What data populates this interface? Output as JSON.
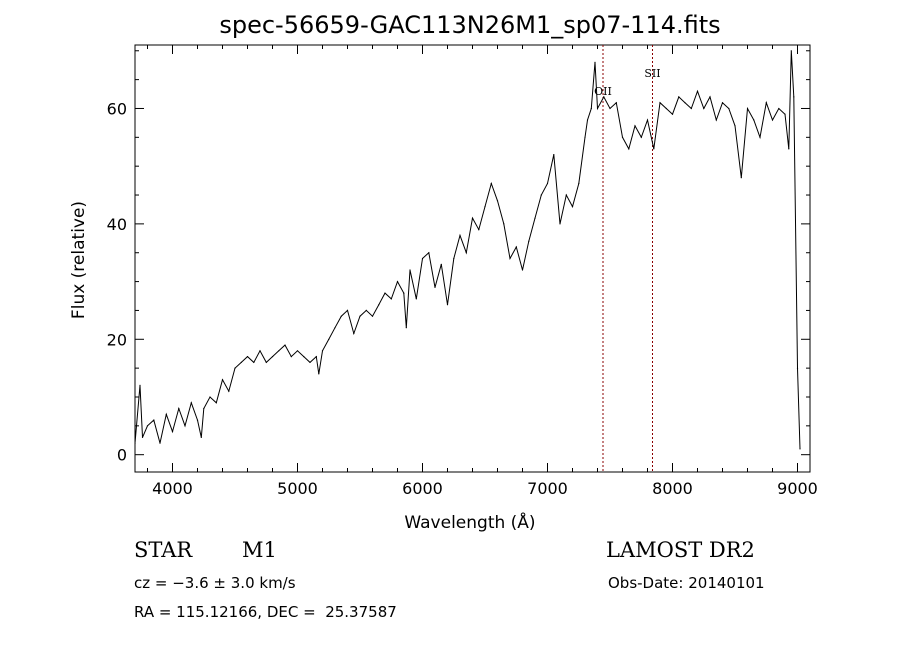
{
  "chart_data": {
    "type": "line",
    "title": "spec-56659-GAC113N26M1_sp07-114.fits",
    "xlabel": "Wavelength (Å)",
    "ylabel": "Flux (relative)",
    "xlim": [
      3700,
      9100
    ],
    "ylim": [
      -3,
      71
    ],
    "xticks": [
      4000,
      5000,
      6000,
      7000,
      8000,
      9000
    ],
    "yticks": [
      0,
      20,
      40,
      60
    ],
    "grid": false,
    "series": [
      {
        "x": [
          3700,
          3740,
          3760,
          3800,
          3850,
          3900,
          3950,
          4000,
          4050,
          4100,
          4150,
          4200,
          4230,
          4250,
          4300,
          4350,
          4400,
          4450,
          4500,
          4550,
          4600,
          4650,
          4700,
          4750,
          4800,
          4850,
          4900,
          4950,
          5000,
          5050,
          5100,
          5150,
          5170,
          5200,
          5250,
          5300,
          5350,
          5400,
          5450,
          5500,
          5550,
          5600,
          5650,
          5700,
          5750,
          5800,
          5850,
          5870,
          5900,
          5950,
          6000,
          6050,
          6100,
          6150,
          6200,
          6250,
          6300,
          6350,
          6400,
          6450,
          6500,
          6550,
          6600,
          6650,
          6700,
          6750,
          6800,
          6850,
          6900,
          6950,
          7000,
          7050,
          7100,
          7150,
          7200,
          7250,
          7300,
          7320,
          7350,
          7380,
          7400,
          7450,
          7500,
          7550,
          7600,
          7650,
          7700,
          7750,
          7800,
          7850,
          7900,
          7950,
          8000,
          8050,
          8100,
          8150,
          8200,
          8250,
          8300,
          8350,
          8400,
          8450,
          8500,
          8550,
          8600,
          8650,
          8700,
          8750,
          8800,
          8850,
          8900,
          8930,
          8950,
          8970,
          9000,
          9020
        ],
        "y": [
          2,
          12,
          3,
          5,
          6,
          2,
          7,
          4,
          8,
          5,
          9,
          6,
          3,
          8,
          10,
          9,
          13,
          11,
          15,
          16,
          17,
          16,
          18,
          16,
          17,
          18,
          19,
          17,
          18,
          17,
          16,
          17,
          14,
          18,
          20,
          22,
          24,
          25,
          21,
          24,
          25,
          24,
          26,
          28,
          27,
          30,
          28,
          22,
          32,
          27,
          34,
          35,
          29,
          33,
          26,
          34,
          38,
          35,
          41,
          39,
          43,
          47,
          44,
          40,
          34,
          36,
          32,
          37,
          41,
          45,
          47,
          52,
          40,
          45,
          43,
          47,
          55,
          58,
          60,
          68,
          60,
          62,
          60,
          61,
          55,
          53,
          57,
          55,
          58,
          53,
          61,
          60,
          59,
          62,
          61,
          60,
          63,
          60,
          62,
          58,
          61,
          60,
          57,
          48,
          60,
          58,
          55,
          61,
          58,
          60,
          59,
          53,
          70,
          62,
          15,
          1
        ]
      }
    ],
    "vlines": [
      {
        "x": 7444,
        "label": "OII"
      },
      {
        "x": 7840,
        "label": "SII"
      }
    ],
    "colors": {
      "spectrum": "#000000",
      "marker": "#8b0000"
    }
  },
  "info": {
    "object_class": "STAR",
    "subclass": "M1",
    "survey": "LAMOST DR2",
    "cz": "cz = −3.6 ± 3.0 km/s",
    "obs_date": "Obs-Date: 20140101",
    "coords": "RA = 115.12166, DEC =  25.37587"
  }
}
